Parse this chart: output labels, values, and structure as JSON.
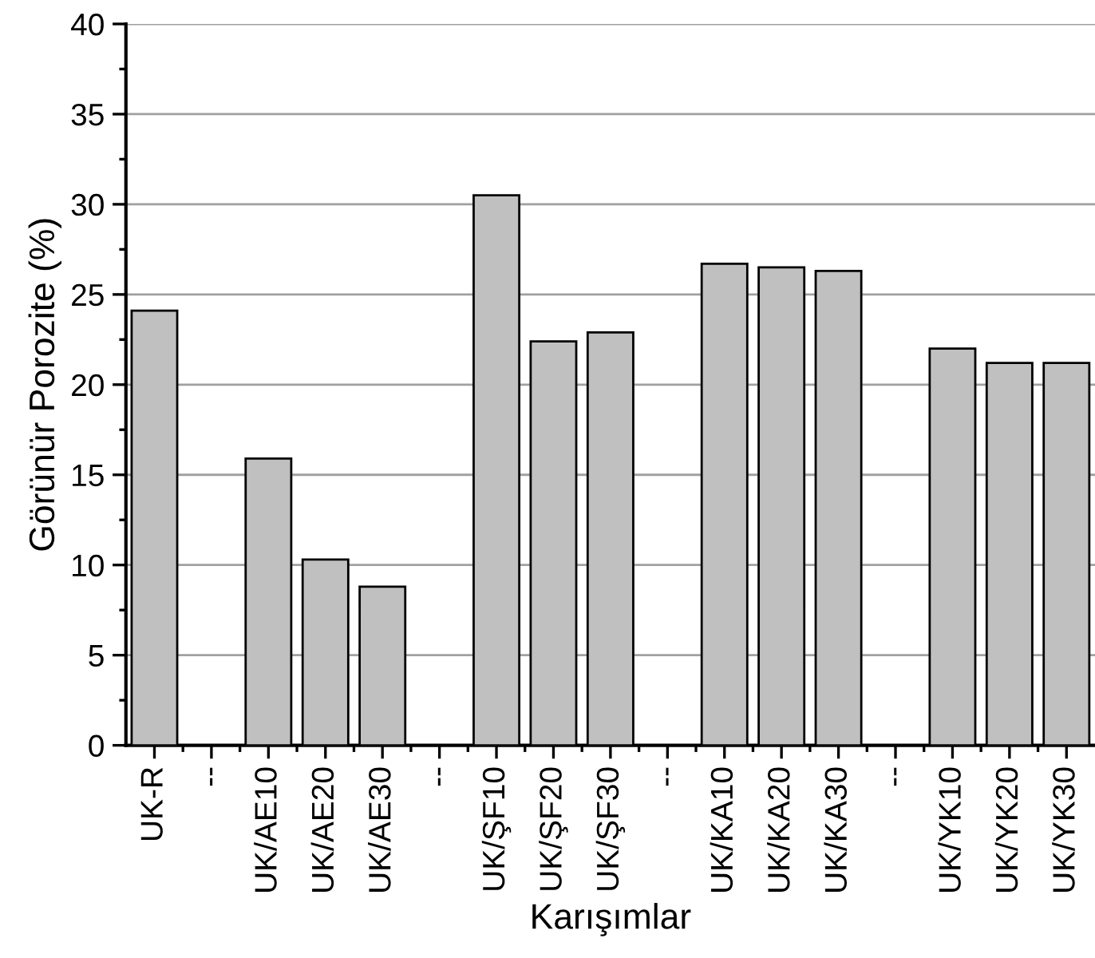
{
  "chart_data": {
    "type": "bar",
    "xlabel": "Karışımlar",
    "ylabel": "Görünür Porozite (%)",
    "categories": [
      "UK-R",
      "--",
      "UK/AE10",
      "UK/AE20",
      "UK/AE30",
      "--",
      "UK/ŞF10",
      "UK/ŞF20",
      "UK/ŞF30",
      "--",
      "UK/KA10",
      "UK/KA20",
      "UK/KA30",
      "--",
      "UK/YK10",
      "UK/YK20",
      "UK/YK30"
    ],
    "values": [
      24.1,
      null,
      15.9,
      10.3,
      8.8,
      null,
      30.5,
      22.4,
      22.9,
      null,
      26.7,
      26.5,
      26.3,
      null,
      22.0,
      21.2,
      21.2
    ],
    "color": "#c0c0c0",
    "ylim": [
      0,
      40
    ],
    "yticks": [
      0,
      5,
      10,
      15,
      20,
      25,
      30,
      35,
      40
    ],
    "grid": "y"
  }
}
